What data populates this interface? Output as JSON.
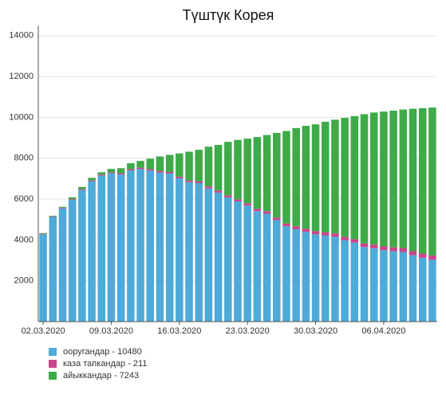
{
  "chart_data": {
    "type": "stacked_bar",
    "title": "Түштүк Корея",
    "categories": [
      "02.03.2020",
      null,
      null,
      null,
      null,
      null,
      null,
      "09.03.2020",
      null,
      null,
      null,
      null,
      null,
      null,
      "16.03.2020",
      null,
      null,
      null,
      null,
      null,
      null,
      "23.03.2020",
      null,
      null,
      null,
      null,
      null,
      null,
      "30.03.2020",
      null,
      null,
      null,
      null,
      null,
      null,
      "06.04.2020",
      null,
      null,
      null,
      null,
      null
    ],
    "series": [
      {
        "name": "ооругандар - 10480",
        "color": "#4eaad8",
        "values": [
          4277,
          5128,
          5545,
          5965,
          6443,
          6879,
          7146,
          7259,
          7206,
          7401,
          7470,
          7397,
          7297,
          7253,
          7018,
          6829,
          6782,
          6524,
          6317,
          6083,
          5884,
          5684,
          5410,
          5281,
          4966,
          4665,
          4523,
          4398,
          4275,
          4216,
          4155,
          3979,
          3867,
          3654,
          3591,
          3500,
          3445,
          3408,
          3246,
          3125,
          3026
        ]
      },
      {
        "name": "каза тапкандар - 211",
        "color": "#c9468a",
        "values": [
          28,
          28,
          35,
          35,
          42,
          44,
          50,
          53,
          60,
          66,
          66,
          72,
          75,
          75,
          81,
          84,
          91,
          94,
          102,
          104,
          104,
          111,
          120,
          126,
          131,
          139,
          144,
          152,
          158,
          162,
          165,
          169,
          174,
          177,
          183,
          186,
          192,
          200,
          204,
          208,
          211
        ]
      },
      {
        "name": "айыккандар - 7243",
        "color": "#3eaa48",
        "values": [
          30,
          30,
          41,
          88,
          108,
          118,
          118,
          166,
          247,
          288,
          333,
          510,
          714,
          834,
          1137,
          1407,
          1540,
          1947,
          2233,
          2612,
          2909,
          3166,
          3507,
          3730,
          4144,
          4528,
          4811,
          5033,
          5228,
          5408,
          5567,
          5828,
          6021,
          6325,
          6463,
          6598,
          6694,
          6776,
          6973,
          7117,
          7243
        ]
      }
    ],
    "ylim": [
      0,
      14500
    ],
    "yticks": [
      2000,
      4000,
      6000,
      8000,
      10000,
      12000,
      14000
    ],
    "grid": true
  }
}
